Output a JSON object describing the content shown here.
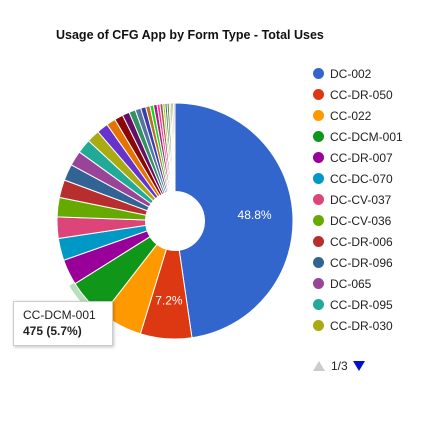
{
  "chart_data": {
    "type": "pie",
    "title": "Usage of CFG App by Form Type - Total Uses",
    "pie_hole": 0.25,
    "legend_position": "right",
    "slices": [
      {
        "label": "DC-002",
        "percent": 48.8,
        "color": "#3366cc"
      },
      {
        "label": "CC-DR-050",
        "percent": 7.2,
        "color": "#dc3912"
      },
      {
        "label": "CC-022",
        "percent": 5.9,
        "color": "#ff9900"
      },
      {
        "label": "CC-DCM-001",
        "percent": 5.7,
        "color": "#109618"
      },
      {
        "label": "CC-DR-007",
        "percent": 3.6,
        "color": "#990099"
      },
      {
        "label": "CC-DC-070",
        "percent": 3.1,
        "color": "#0099c6"
      },
      {
        "label": "DC-CV-037",
        "percent": 3.0,
        "color": "#dd4477"
      },
      {
        "label": "DC-CV-036",
        "percent": 2.7,
        "color": "#66aa00"
      },
      {
        "label": "CC-DR-006",
        "percent": 2.5,
        "color": "#b82e2e"
      },
      {
        "label": "CC-DR-096",
        "percent": 2.3,
        "color": "#316395"
      },
      {
        "label": "DC-065",
        "percent": 2.1,
        "color": "#994499"
      },
      {
        "label": "CC-DR-095",
        "percent": 2.0,
        "color": "#22aa99"
      },
      {
        "label": "CC-DR-030",
        "percent": 1.8,
        "color": "#aaaa11"
      },
      {
        "label": "",
        "percent": 1.6,
        "color": "#6633cc"
      },
      {
        "label": "",
        "percent": 1.3,
        "color": "#e67300"
      },
      {
        "label": "",
        "percent": 1.2,
        "color": "#8b0707"
      },
      {
        "label": "",
        "percent": 1.0,
        "color": "#651067"
      },
      {
        "label": "",
        "percent": 0.9,
        "color": "#329262"
      },
      {
        "label": "",
        "percent": 0.8,
        "color": "#5574a6"
      },
      {
        "label": "",
        "percent": 0.7,
        "color": "#3b3eac"
      },
      {
        "label": "",
        "percent": 0.6,
        "color": "#b77322"
      },
      {
        "label": "",
        "percent": 0.5,
        "color": "#16d620"
      },
      {
        "label": "",
        "percent": 0.5,
        "color": "#b91383"
      },
      {
        "label": "",
        "percent": 0.4,
        "color": "#f4359e"
      },
      {
        "label": "",
        "percent": 0.4,
        "color": "#9c5935"
      },
      {
        "label": "",
        "percent": 0.3,
        "color": "#a9c413"
      },
      {
        "label": "",
        "percent": 0.3,
        "color": "#2a778d"
      },
      {
        "label": "",
        "percent": 0.3,
        "color": "#668d1c"
      },
      {
        "label": "",
        "percent": 0.2,
        "color": "#bea413"
      },
      {
        "label": "",
        "percent": 0.2,
        "color": "#0c5922"
      },
      {
        "label": "",
        "percent": 0.2,
        "color": "#743411"
      },
      {
        "label": "",
        "percent": 0.2,
        "color": "#aaaaaa"
      }
    ],
    "data_labels": [
      {
        "slice": 0,
        "text": "48.8%"
      },
      {
        "slice": 1,
        "text": "7.2%"
      }
    ],
    "highlighted_slice": 3
  },
  "tooltip": {
    "label": "CC-DCM-001",
    "value": "475 (5.7%)"
  },
  "legend": {
    "items": [
      {
        "label": "DC-002",
        "color": "#3366cc"
      },
      {
        "label": "CC-DR-050",
        "color": "#dc3912"
      },
      {
        "label": "CC-022",
        "color": "#ff9900"
      },
      {
        "label": "CC-DCM-001",
        "color": "#109618"
      },
      {
        "label": "CC-DR-007",
        "color": "#990099"
      },
      {
        "label": "CC-DC-070",
        "color": "#0099c6"
      },
      {
        "label": "DC-CV-037",
        "color": "#dd4477"
      },
      {
        "label": "DC-CV-036",
        "color": "#66aa00"
      },
      {
        "label": "CC-DR-006",
        "color": "#b82e2e"
      },
      {
        "label": "CC-DR-096",
        "color": "#316395"
      },
      {
        "label": "DC-065",
        "color": "#994499"
      },
      {
        "label": "CC-DR-095",
        "color": "#22aa99"
      },
      {
        "label": "CC-DR-030",
        "color": "#aaaa11"
      }
    ],
    "pager": {
      "text": "1/3",
      "prev_icon": "triangle-up-icon",
      "next_icon": "triangle-down-icon"
    }
  }
}
